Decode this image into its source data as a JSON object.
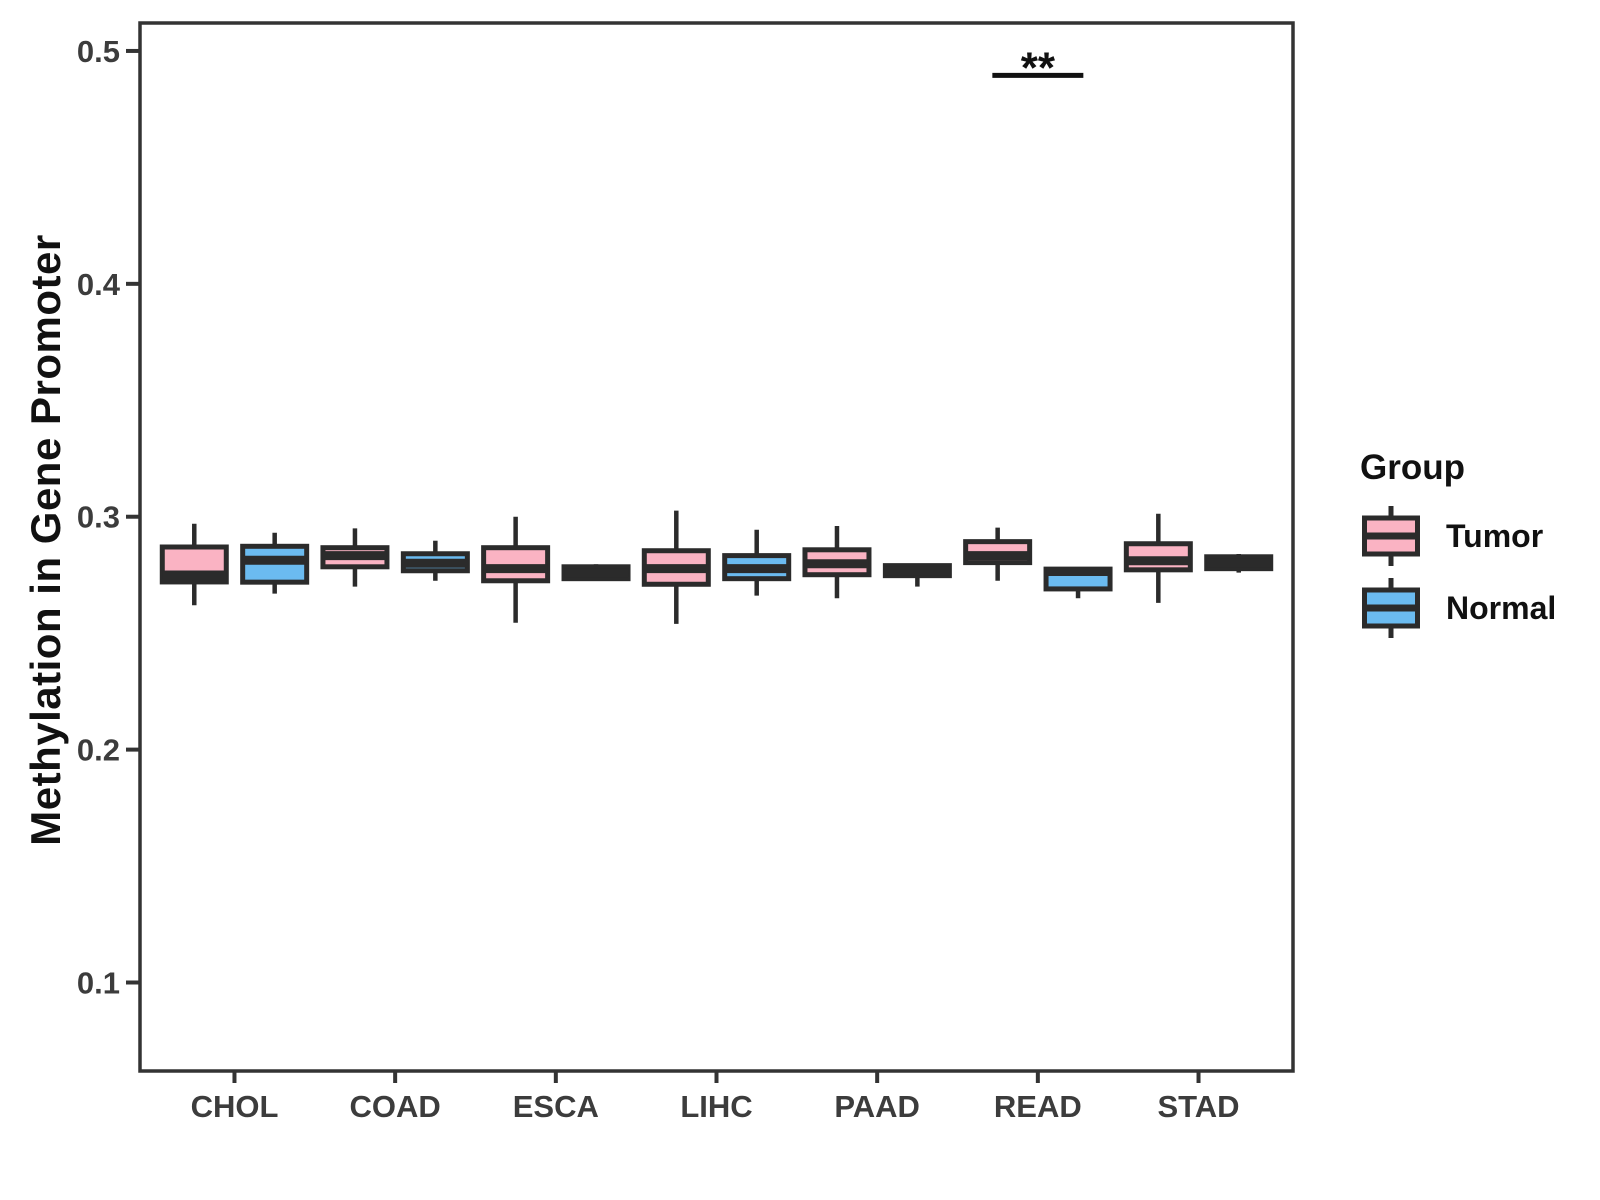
{
  "figure": {
    "background": "#ffffff"
  },
  "chart_data": {
    "type": "grouped_boxplot",
    "title": "",
    "ylabel": "Methylation in Gene Promoter",
    "xlabel": "",
    "categories": [
      "CHOL",
      "COAD",
      "ESCA",
      "LIHC",
      "PAAD",
      "READ",
      "STAD"
    ],
    "y_ticks": [
      "0.1",
      "0.2",
      "0.3",
      "0.4",
      "0.5"
    ],
    "y_tick_values": [
      0.1,
      0.2,
      0.3,
      0.4,
      0.5
    ],
    "ylim": [
      0.062,
      0.512
    ],
    "grid": false,
    "stroke_color": "#2b2b2b",
    "axis_color": "#333333",
    "tick_label_color": "#3c3c3c",
    "legend": {
      "title": "Group",
      "position": "right"
    },
    "series": [
      {
        "name": "Tumor",
        "color": "#FAB3C3",
        "boxes": [
          {
            "whisker_low": 0.262,
            "q1": 0.272,
            "median": 0.275,
            "q3": 0.287,
            "whisker_high": 0.297
          },
          {
            "whisker_low": 0.27,
            "q1": 0.2785,
            "median": 0.2833,
            "q3": 0.2867,
            "whisker_high": 0.295
          },
          {
            "whisker_low": 0.2545,
            "q1": 0.2725,
            "median": 0.2777,
            "q3": 0.2867,
            "whisker_high": 0.3
          },
          {
            "whisker_low": 0.254,
            "q1": 0.271,
            "median": 0.2777,
            "q3": 0.2854,
            "whisker_high": 0.3026
          },
          {
            "whisker_low": 0.265,
            "q1": 0.2751,
            "median": 0.2798,
            "q3": 0.2858,
            "whisker_high": 0.296
          },
          {
            "whisker_low": 0.2725,
            "q1": 0.2803,
            "median": 0.2833,
            "q3": 0.2893,
            "whisker_high": 0.2953
          },
          {
            "whisker_low": 0.263,
            "q1": 0.2772,
            "median": 0.2811,
            "q3": 0.2884,
            "whisker_high": 0.3013
          }
        ]
      },
      {
        "name": "Normal",
        "color": "#6BBBF0",
        "boxes": [
          {
            "whisker_low": 0.267,
            "q1": 0.2719,
            "median": 0.2813,
            "q3": 0.2873,
            "whisker_high": 0.2931
          },
          {
            "whisker_low": 0.2725,
            "q1": 0.2768,
            "median": 0.28,
            "q3": 0.2841,
            "whisker_high": 0.2897
          },
          {
            "whisker_low": 0.2728,
            "q1": 0.2734,
            "median": 0.276,
            "q3": 0.2785,
            "whisker_high": 0.2796
          },
          {
            "whisker_low": 0.2661,
            "q1": 0.2734,
            "median": 0.2777,
            "q3": 0.2833,
            "whisker_high": 0.2944
          },
          {
            "whisker_low": 0.27,
            "q1": 0.2747,
            "median": 0.2768,
            "q3": 0.279,
            "whisker_high": 0.2798
          },
          {
            "whisker_low": 0.265,
            "q1": 0.269,
            "median": 0.2765,
            "q3": 0.2775,
            "whisker_high": 0.278
          },
          {
            "whisker_low": 0.276,
            "q1": 0.2777,
            "median": 0.2803,
            "q3": 0.2828,
            "whisker_high": 0.284
          }
        ]
      }
    ],
    "annotations": [
      {
        "text": "**",
        "category": "READ",
        "line_y": 0.4895
      }
    ]
  }
}
